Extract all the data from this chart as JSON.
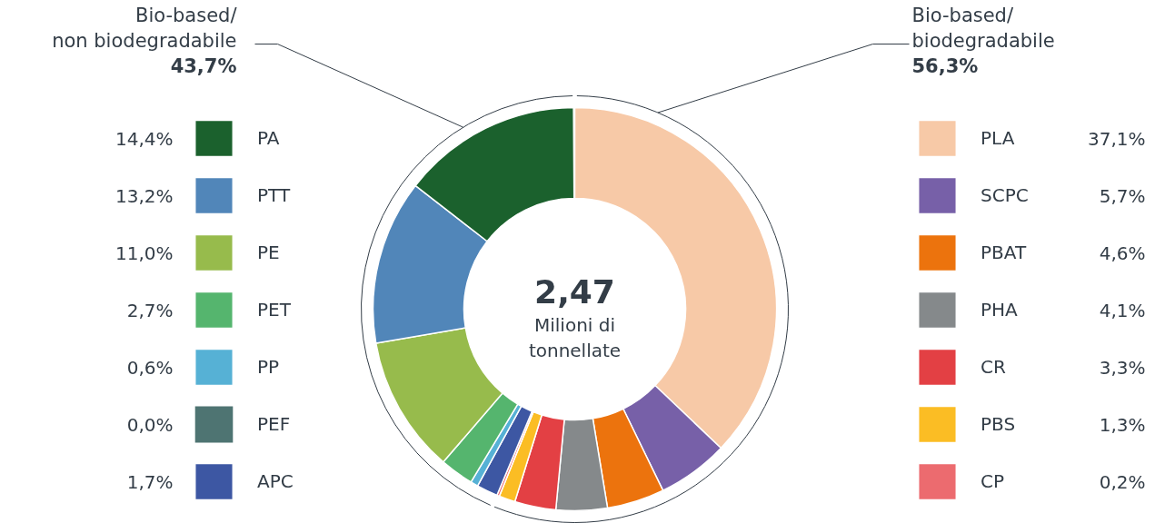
{
  "chart_data": {
    "type": "donut",
    "categories": [
      "PLA",
      "SCPC",
      "PBAT",
      "PHA",
      "CR",
      "PBS",
      "CP",
      "APC",
      "PEF",
      "PP",
      "PET",
      "PE",
      "PTT",
      "PA"
    ],
    "values": [
      37.1,
      5.7,
      4.6,
      4.1,
      3.3,
      1.3,
      0.2,
      1.7,
      0.0,
      0.6,
      2.7,
      11.0,
      13.2,
      14.4
    ],
    "value_labels": [
      "37,1%",
      "5,7%",
      "4,6%",
      "4,1%",
      "3,3%",
      "1,3%",
      "0,2%",
      "1,7%",
      "0,0%",
      "0,6%",
      "2,7%",
      "11,0%",
      "13,2%",
      "14,4%"
    ],
    "colors": [
      "#f7c9a7",
      "#7760a8",
      "#ec730d",
      "#85898b",
      "#e34044",
      "#fbbd24",
      "#ec6b6f",
      "#3d57a3",
      "#4e7472",
      "#56b1d5",
      "#55b56e",
      "#97bb4c",
      "#5186b9",
      "#1b612d"
    ],
    "legend": "right",
    "annotations": [
      "2,47",
      "Milioni di\ntonnellate",
      "Bio-based/\nbiodegradabile\n56,3%",
      "Bio-based/\nnon biodegradabile\n43,7%"
    ]
  }
}
